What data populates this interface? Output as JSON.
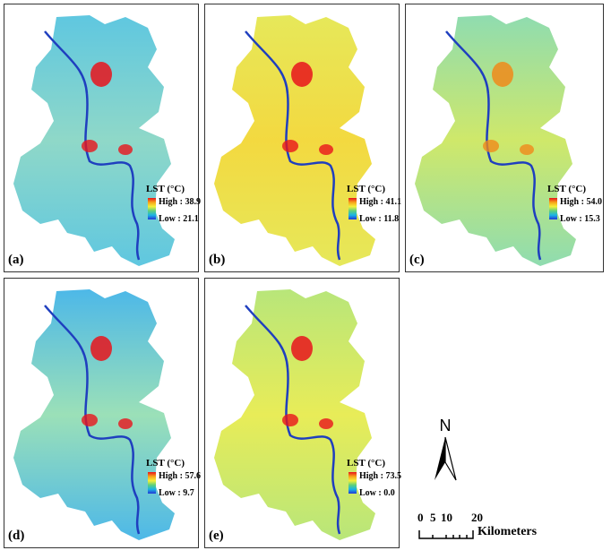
{
  "legend_title": "LST (°C)",
  "colors": {
    "high": "#e8141c",
    "mid": "#f5f03a",
    "low": "#2237d6",
    "river": "#1f3fbf"
  },
  "panels": [
    {
      "label": "(a)",
      "high": "High : 38.9",
      "low": "Low : 21.1",
      "base": "#5fc7e0",
      "tint": "#8fd8c8"
    },
    {
      "label": "(b)",
      "high": "High : 41.1",
      "low": "Low : 11.8",
      "base": "#e6e85a",
      "tint": "#f3d940"
    },
    {
      "label": "(c)",
      "high": "High : 54.0",
      "low": "Low : 15.3",
      "base": "#8fdcb0",
      "tint": "#cfe86a"
    },
    {
      "label": "(d)",
      "high": "High : 57.6",
      "low": "Low : 9.7",
      "base": "#4db8e8",
      "tint": "#9be0b8"
    },
    {
      "label": "(e)",
      "high": "High : 73.5",
      "low": "Low : 0.0",
      "base": "#b8e67a",
      "tint": "#e8ec58"
    }
  ],
  "north_label": "N",
  "scale": {
    "ticks": [
      "0",
      "5",
      "10",
      "20"
    ],
    "unit": "Kilometers"
  }
}
